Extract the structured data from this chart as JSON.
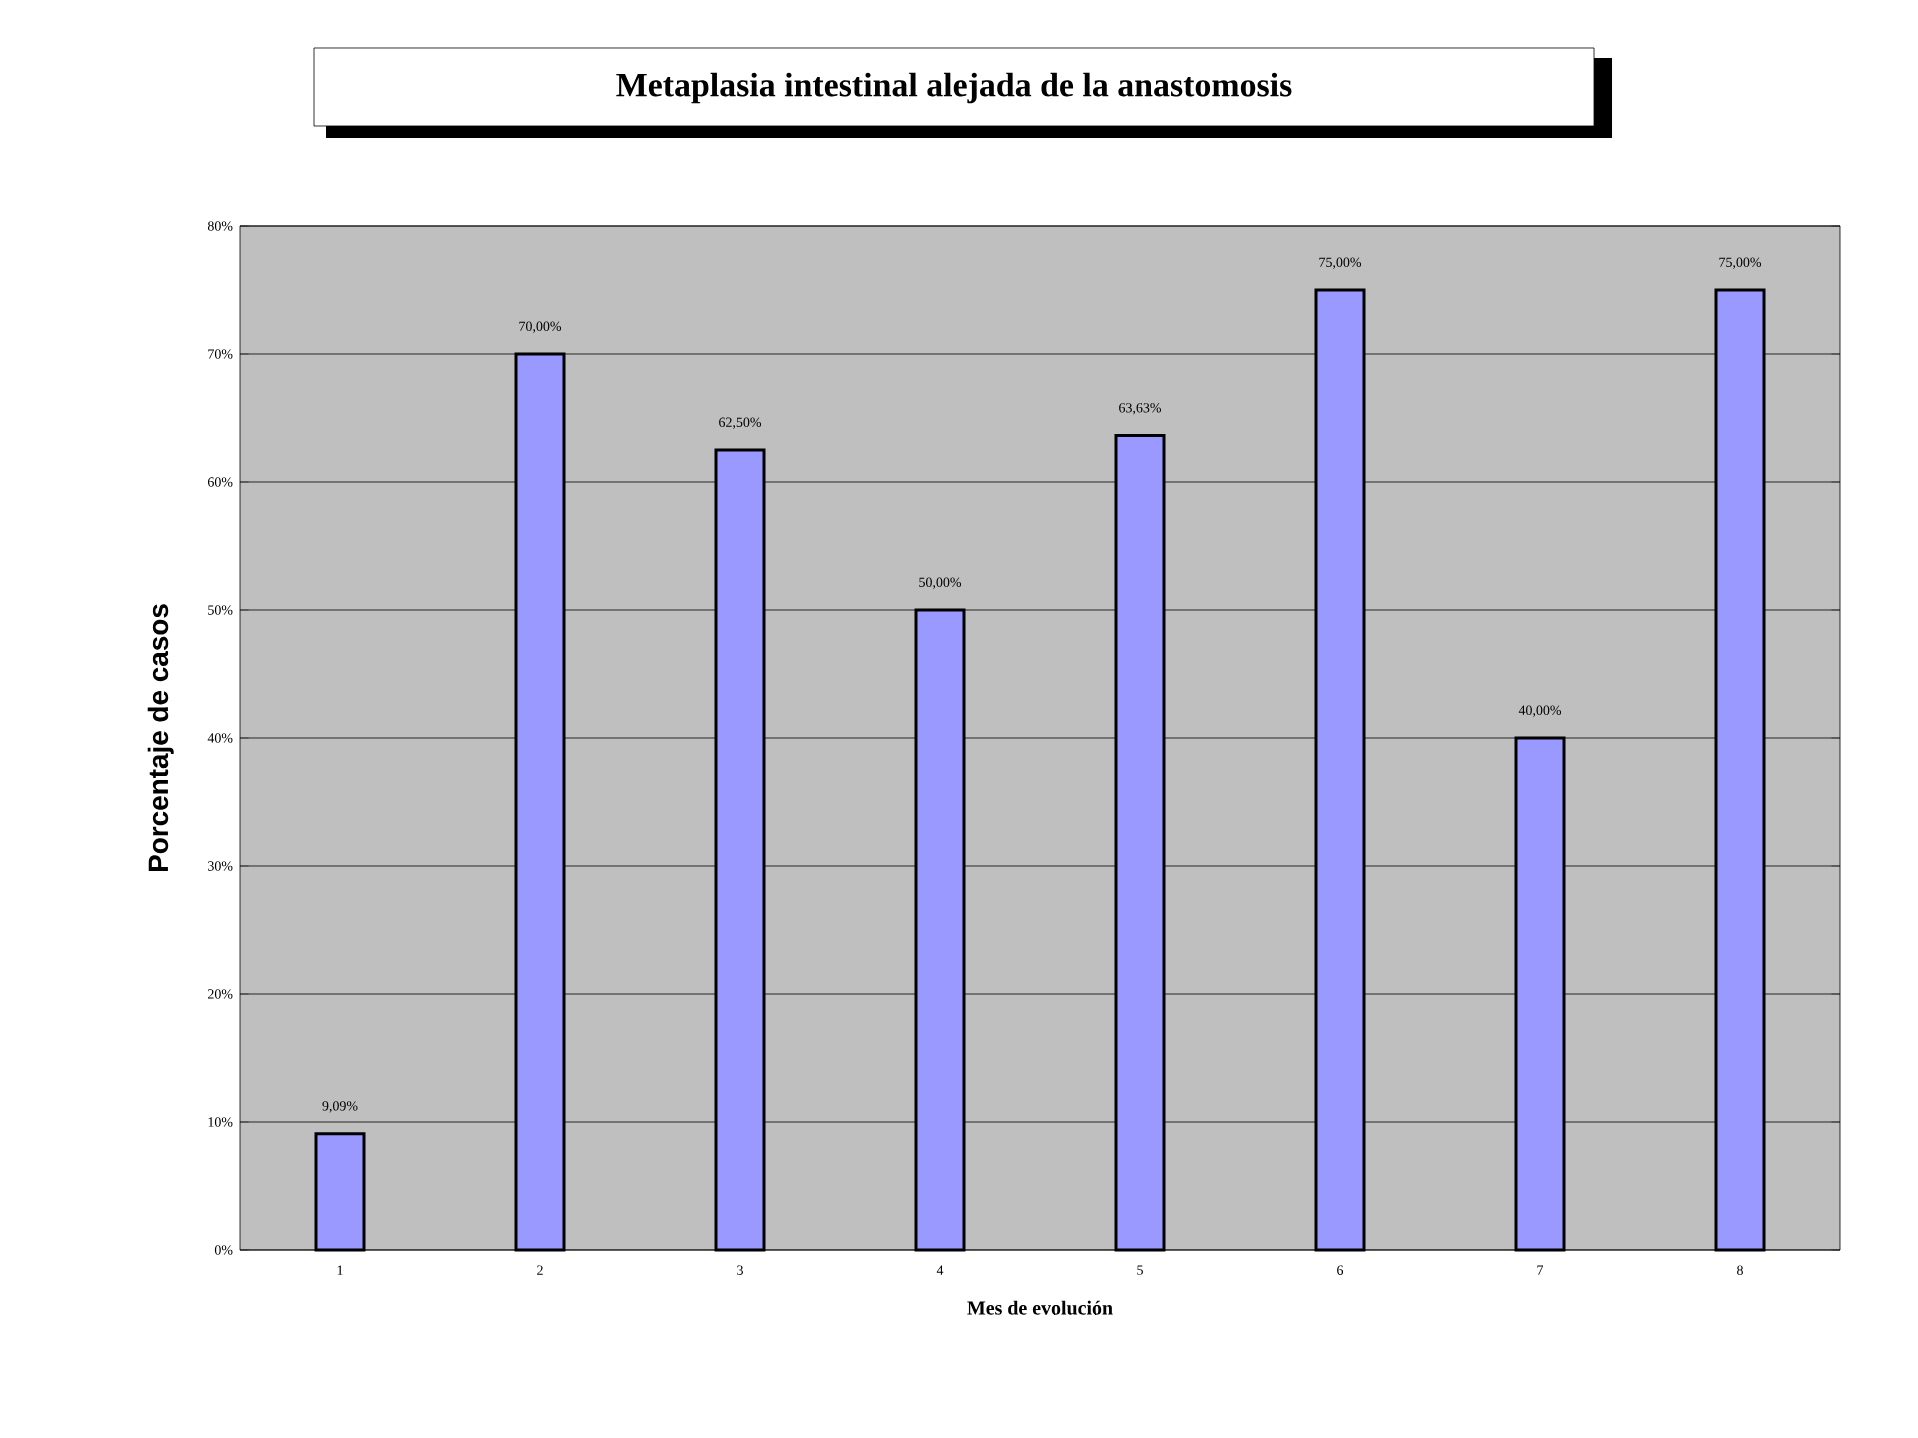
{
  "chart_data": {
    "type": "bar",
    "title": "Metaplasia intestinal alejada de la anastomosis",
    "xlabel": "Mes de evolución",
    "ylabel": "Porcentaje de casos",
    "categories": [
      "1",
      "2",
      "3",
      "4",
      "5",
      "6",
      "7",
      "8"
    ],
    "values": [
      9.09,
      70,
      62.5,
      50,
      63.63,
      75,
      40,
      75
    ],
    "value_labels": [
      "9,09%",
      "70,00%",
      "62,50%",
      "50,00%",
      "63,63%",
      "75,00%",
      "40,00%",
      "75,00%"
    ],
    "color": "#9999ff",
    "ylim": [
      0,
      80
    ],
    "yticks": [
      {
        "value": 0,
        "label": "0%"
      },
      {
        "value": 10,
        "label": "10%"
      },
      {
        "value": 20,
        "label": "20%"
      },
      {
        "value": 30,
        "label": "30%"
      },
      {
        "value": 40,
        "label": "40%"
      },
      {
        "value": 50,
        "label": "50%"
      },
      {
        "value": 60,
        "label": "60%"
      },
      {
        "value": 70,
        "label": "70%"
      },
      {
        "value": 80,
        "label": "80%"
      }
    ],
    "grid": "y"
  }
}
